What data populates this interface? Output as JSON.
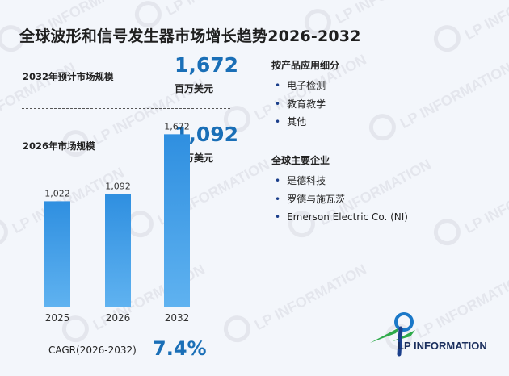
{
  "title": "全球波形和信号发生器市场增长趋势2026-2032",
  "kpis": [
    {
      "label": "2032年预计市场规模",
      "value": "1,672",
      "unit": "百万美元"
    },
    {
      "label": "2026年市场规模",
      "value": "1,092",
      "unit": "百万美元"
    }
  ],
  "segments": {
    "title": "按产品应用细分",
    "items": [
      "电子检测",
      "教育教学",
      "其他"
    ]
  },
  "companies": {
    "title": "全球主要企业",
    "items": [
      "是德科技",
      "罗德与施瓦茨",
      "Emerson Electric Co. (NI)"
    ]
  },
  "chart_data": {
    "type": "bar",
    "categories": [
      "2025",
      "2026",
      "2032"
    ],
    "values": [
      1022,
      1092,
      1672
    ],
    "value_labels": [
      "1,022",
      "1,092",
      "1,672"
    ],
    "ylim": [
      0,
      1800
    ],
    "grid": false,
    "bar_color": "#1a78c8"
  },
  "cagr": {
    "label": "CAGR(2026-2032)",
    "value": "7.4%"
  },
  "logo": {
    "text": "LP INFORMATION"
  },
  "watermark": {
    "text": "LP INFORMATION"
  }
}
